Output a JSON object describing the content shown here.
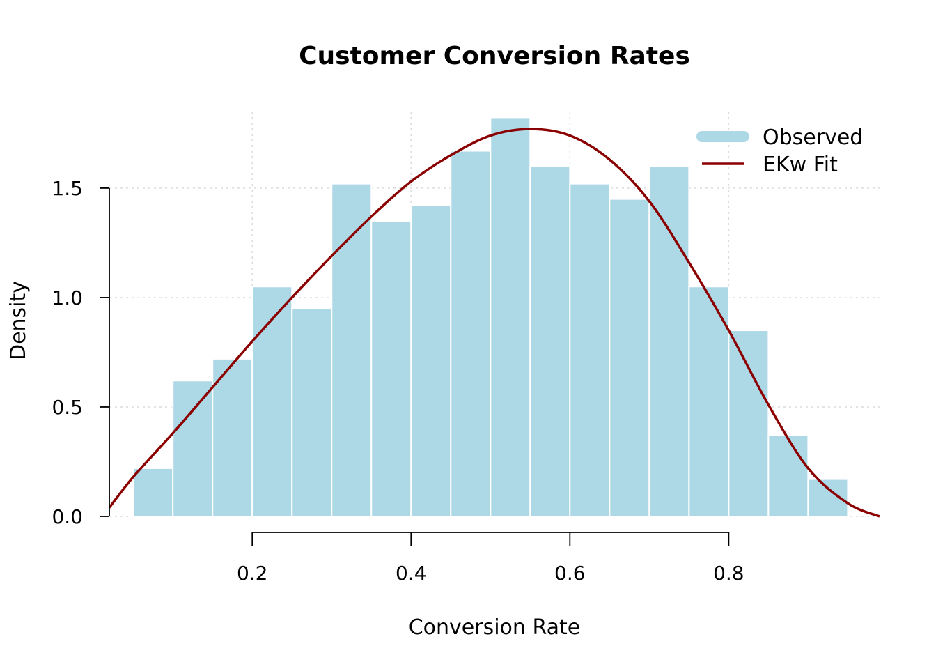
{
  "chart_data": {
    "type": "bar",
    "title": "Customer Conversion Rates",
    "xlabel": "Conversion Rate",
    "ylabel": "Density",
    "xlim": [
      0.02,
      0.99
    ],
    "ylim": [
      0,
      1.85
    ],
    "xticks": [
      "0.2",
      "0.4",
      "0.6",
      "0.8"
    ],
    "yticks": [
      "0.0",
      "0.5",
      "1.0",
      "1.5"
    ],
    "grid": true,
    "legend_position": "top-right",
    "bin_edges": [
      0.05,
      0.1,
      0.15,
      0.2,
      0.25,
      0.3,
      0.35,
      0.4,
      0.45,
      0.5,
      0.55,
      0.6,
      0.65,
      0.7,
      0.75,
      0.8,
      0.85,
      0.9,
      0.95
    ],
    "series": [
      {
        "name": "Observed",
        "kind": "histogram",
        "color": "#add8e6",
        "values": [
          0.22,
          0.62,
          0.72,
          1.05,
          0.95,
          1.52,
          1.35,
          1.42,
          1.67,
          1.82,
          1.6,
          1.52,
          1.45,
          1.6,
          1.05,
          0.85,
          0.37,
          0.17
        ]
      },
      {
        "name": "EKw Fit",
        "kind": "line",
        "color": "#8b0000",
        "x": [
          0.02,
          0.05,
          0.1,
          0.15,
          0.2,
          0.25,
          0.3,
          0.35,
          0.4,
          0.45,
          0.5,
          0.55,
          0.6,
          0.65,
          0.7,
          0.75,
          0.8,
          0.85,
          0.9,
          0.95,
          0.99
        ],
        "y": [
          0.04,
          0.18,
          0.38,
          0.59,
          0.8,
          1.0,
          1.19,
          1.37,
          1.53,
          1.65,
          1.74,
          1.77,
          1.74,
          1.63,
          1.44,
          1.16,
          0.85,
          0.51,
          0.22,
          0.06,
          0.0
        ]
      }
    ]
  }
}
